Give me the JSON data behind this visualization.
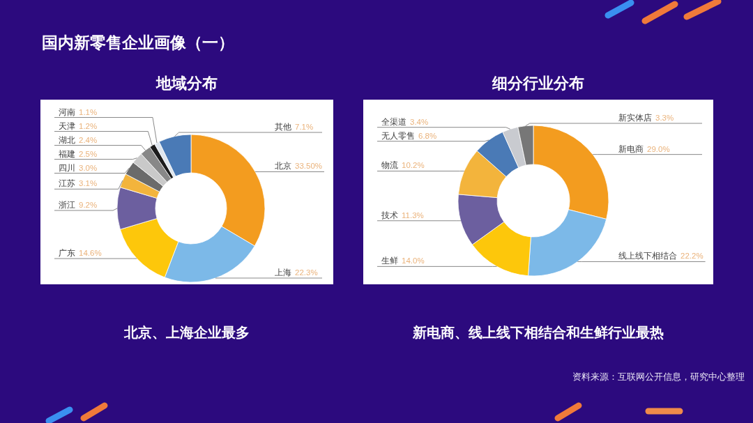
{
  "chart_data": [
    {
      "type": "donut",
      "title": "国内新零售企业画像（一）",
      "subtitle": "地域分布",
      "categories": [
        "北京",
        "上海",
        "广东",
        "浙江",
        "江苏",
        "四川",
        "福建",
        "湖北",
        "天津",
        "河南",
        "其他"
      ],
      "values": [
        33.5,
        22.3,
        14.6,
        9.2,
        3.1,
        3.0,
        2.5,
        2.4,
        1.2,
        1.1,
        7.1
      ],
      "value_labels": [
        "33.50%",
        "22.3%",
        "14.6%",
        "9.2%",
        "3.1%",
        "3.0%",
        "2.5%",
        "2.4%",
        "1.2%",
        "1.1%",
        "7.1%"
      ],
      "colors": [
        "#f39c1f",
        "#7cb9e8",
        "#fdc70b",
        "#6c5f9f",
        "#f3b43c",
        "#6b6b6b",
        "#c9c9c9",
        "#888888",
        "#1c1c1c",
        "#dfe6ee",
        "#4a7ab6"
      ],
      "annotations": [
        "北京、上海企业最多"
      ]
    },
    {
      "type": "donut",
      "subtitle": "细分行业分布",
      "categories": [
        "新电商",
        "线上线下相结合",
        "生鲜",
        "技术",
        "物流",
        "无人零售",
        "全渠道",
        "新实体店"
      ],
      "values": [
        29.0,
        22.2,
        14.0,
        11.3,
        10.2,
        6.8,
        3.4,
        3.3
      ],
      "value_labels": [
        "29.0%",
        "22.2%",
        "14.0%",
        "11.3%",
        "10.2%",
        "6.8%",
        "3.4%",
        "3.3%"
      ],
      "colors": [
        "#f39c1f",
        "#7cb9e8",
        "#fdc70b",
        "#6c5f9f",
        "#f3b43c",
        "#4a7ab6",
        "#c9cbd0",
        "#777777"
      ],
      "annotations": [
        "新电商、线上线下相结合和生鲜行业最热",
        "资料来源：互联网公开信息，研究中心整理"
      ]
    }
  ]
}
